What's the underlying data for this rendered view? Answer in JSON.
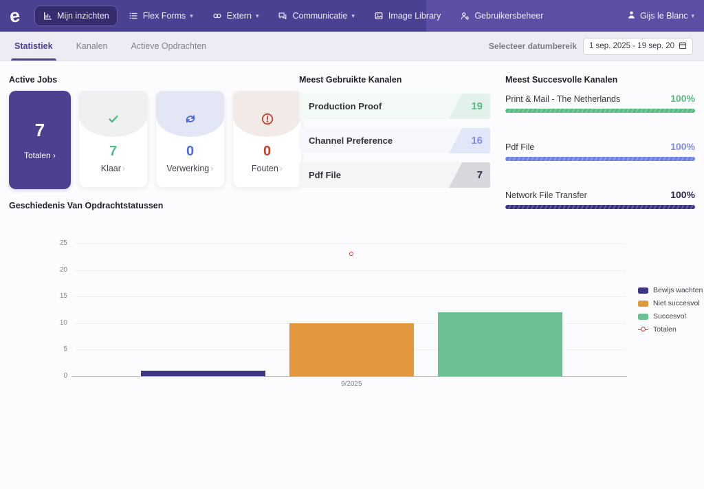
{
  "nav": {
    "logo": "e",
    "items": [
      {
        "label": "Mijn inzichten",
        "icon": "insights-icon",
        "active": true,
        "caret": false
      },
      {
        "label": "Flex Forms",
        "icon": "forms-icon",
        "active": false,
        "caret": true
      },
      {
        "label": "Extern",
        "icon": "link-icon",
        "active": false,
        "caret": true
      },
      {
        "label": "Communicatie",
        "icon": "chat-icon",
        "active": false,
        "caret": true
      },
      {
        "label": "Image Library",
        "icon": "image-icon",
        "active": false,
        "caret": false
      },
      {
        "label": "Gebruikersbeheer",
        "icon": "user-settings-icon",
        "active": false,
        "caret": false
      }
    ],
    "user": {
      "label": "Gijs le Blanc"
    }
  },
  "tabs": [
    {
      "label": "Statistiek",
      "active": true
    },
    {
      "label": "Kanalen",
      "active": false
    },
    {
      "label": "Actieve Opdrachten",
      "active": false
    }
  ],
  "date_filter": {
    "label": "Selecteer datumbereik",
    "value": "1 sep. 2025 - 19 sep. 20"
  },
  "active_jobs": {
    "title": "Active Jobs",
    "cards": [
      {
        "value": "7",
        "label": "Totalen",
        "chevron": "›",
        "status": "primary"
      },
      {
        "value": "7",
        "label": "Klaar",
        "chevron": "›",
        "status": "done"
      },
      {
        "value": "0",
        "label": "Verwerking",
        "chevron": "›",
        "status": "processing"
      },
      {
        "value": "0",
        "label": "Fouten",
        "chevron": "›",
        "status": "error"
      }
    ]
  },
  "most_used": {
    "title": "Meest Gebruikte Kanalen",
    "rows": [
      {
        "label": "Production Proof",
        "value": "19"
      },
      {
        "label": "Channel Preference",
        "value": "16"
      },
      {
        "label": "Pdf File",
        "value": "7"
      }
    ]
  },
  "most_successful": {
    "title": "Meest Succesvolle Kanalen",
    "rows": [
      {
        "label": "Print & Mail - The Netherlands",
        "value": "100%"
      },
      {
        "label": "Pdf File",
        "value": "100%"
      },
      {
        "label": "Network File Transfer",
        "value": "100%"
      }
    ]
  },
  "chart_data": {
    "type": "bar",
    "title": "Geschiedenis Van Opdrachtstatussen",
    "categories": [
      "9/2025"
    ],
    "series": [
      {
        "name": "Bewijs wachten",
        "values": [
          1
        ],
        "color": "#3e3583"
      },
      {
        "name": "Niet succesvol",
        "values": [
          10
        ],
        "color": "#e2993d"
      },
      {
        "name": "Succesvol",
        "values": [
          12
        ],
        "color": "#6cc193"
      }
    ],
    "line_series": {
      "name": "Totalen",
      "values": [
        23
      ],
      "color": "#c43c39"
    },
    "xlabel": "",
    "ylabel": "",
    "ylim": [
      0,
      25
    ],
    "yticks": [
      0,
      5,
      10,
      15,
      20,
      25
    ],
    "grid": true,
    "legend_position": "right"
  },
  "colors": {
    "primary_purple": "#4c4191",
    "nav_left": "#4b4192",
    "nav_right": "#5a4fa4",
    "nav_active": "#352d6e",
    "green": "#57bb82",
    "blue": "#4f6fd6",
    "red": "#c0412c",
    "value_blue": "#7e8de4",
    "value_dark": "#2e2a4e",
    "progress_blue": "#6d83e4",
    "progress_dark": "#3d3480"
  }
}
